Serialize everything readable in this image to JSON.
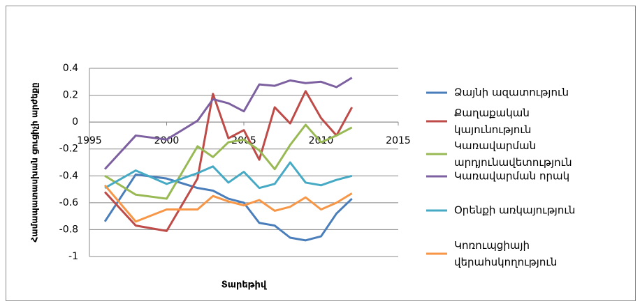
{
  "chart_data": {
    "type": "line",
    "y_label": "Համապատասխան ցուցիչի արժեքը",
    "x_label": "Տարեթիվ",
    "x": [
      1996,
      1998,
      2000,
      2002,
      2003,
      2004,
      2005,
      2006,
      2007,
      2008,
      2009,
      2010,
      2011,
      2012
    ],
    "series": [
      {
        "name": "Ձայնի ազատություն",
        "color": "#4a7ebb",
        "values": [
          -0.74,
          -0.39,
          -0.42,
          -0.49,
          -0.51,
          -0.57,
          -0.6,
          -0.75,
          -0.77,
          -0.86,
          -0.88,
          -0.85,
          -0.68,
          -0.57
        ]
      },
      {
        "name": "Քաղաքական կայունություն",
        "color": "#be4b48",
        "values": [
          -0.52,
          -0.77,
          -0.81,
          -0.42,
          0.21,
          -0.12,
          -0.06,
          -0.28,
          0.11,
          -0.01,
          0.23,
          0.03,
          -0.1,
          0.11
        ]
      },
      {
        "name": "Կառավարման արդյունավետություն",
        "color": "#98b954",
        "values": [
          -0.4,
          -0.54,
          -0.57,
          -0.18,
          -0.26,
          -0.15,
          -0.13,
          -0.21,
          -0.35,
          -0.17,
          -0.02,
          -0.15,
          -0.1,
          -0.04
        ]
      },
      {
        "name": "Կառավարման որակ",
        "color": "#7d60a0",
        "values": [
          -0.35,
          -0.1,
          -0.13,
          0.01,
          0.17,
          0.14,
          0.08,
          0.28,
          0.27,
          0.31,
          0.29,
          0.3,
          0.26,
          0.33
        ]
      },
      {
        "name": "Օրենքի առկայություն",
        "color": "#46aac5",
        "values": [
          -0.49,
          -0.36,
          -0.46,
          -0.38,
          -0.33,
          -0.45,
          -0.37,
          -0.49,
          -0.46,
          -0.3,
          -0.45,
          -0.47,
          -0.43,
          -0.4
        ]
      },
      {
        "name": "Կոռուպցիայի վերահսկողություն",
        "color": "#f79646",
        "values": [
          -0.47,
          -0.74,
          -0.65,
          -0.65,
          -0.55,
          -0.59,
          -0.62,
          -0.58,
          -0.66,
          -0.63,
          -0.56,
          -0.65,
          -0.6,
          -0.53
        ]
      }
    ],
    "xlim": [
      1995,
      2015
    ],
    "xticks": [
      1995,
      2000,
      2005,
      2010,
      2015
    ],
    "ylim": [
      -1,
      0.4
    ],
    "yticks": [
      -1,
      -0.8,
      -0.6,
      -0.4,
      -0.2,
      0,
      0.2,
      0.4
    ],
    "grid": true,
    "legend": "right"
  }
}
